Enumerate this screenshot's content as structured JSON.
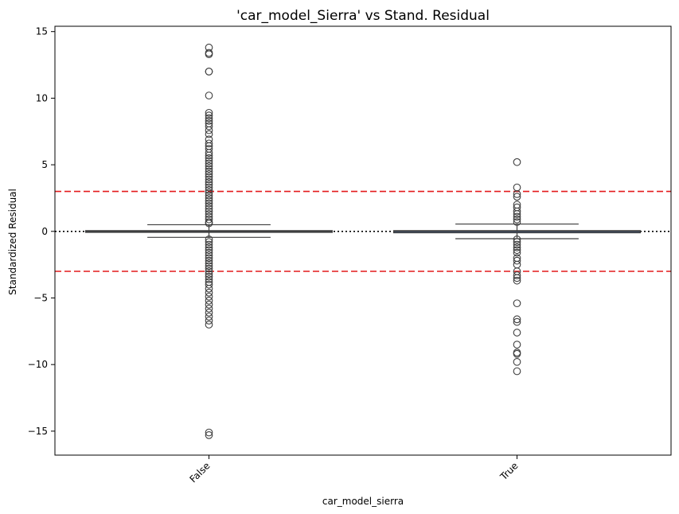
{
  "chart_data": {
    "type": "box",
    "title": "'car_model_Sierra' vs Stand. Residual",
    "xlabel": "car_model_sierra",
    "ylabel": "Standardized Residual",
    "ylim": [
      -16.8,
      15.4
    ],
    "yticks": [
      15,
      10,
      5,
      0,
      -5,
      -10,
      -15
    ],
    "ytick_labels": [
      "15",
      "10",
      "5",
      "0",
      "−5",
      "−10",
      "−15"
    ],
    "categories": [
      "False",
      "True"
    ],
    "boxes": [
      {
        "category": "False",
        "q1": -0.05,
        "median": 0.0,
        "q3": 0.05,
        "whisker_low": -0.45,
        "whisker_high": 0.5,
        "outliers": [
          13.8,
          13.4,
          13.3,
          12.0,
          12.0,
          10.2,
          8.9,
          8.7,
          8.5,
          8.3,
          8.1,
          7.9,
          7.6,
          7.3,
          6.9,
          6.6,
          6.4,
          6.2,
          5.9,
          5.7,
          5.5,
          5.3,
          5.1,
          4.9,
          4.7,
          4.5,
          4.3,
          4.1,
          3.9,
          3.7,
          3.5,
          3.3,
          3.1,
          2.9,
          2.7,
          2.5,
          2.3,
          2.1,
          1.9,
          1.7,
          1.5,
          1.3,
          1.1,
          0.9,
          0.7,
          0.6,
          -0.6,
          -0.8,
          -1.0,
          -1.2,
          -1.4,
          -1.6,
          -1.8,
          -2.0,
          -2.2,
          -2.4,
          -2.6,
          -2.8,
          -3.0,
          -3.2,
          -3.4,
          -3.6,
          -3.8,
          -4.0,
          -4.3,
          -4.6,
          -4.9,
          -5.2,
          -5.5,
          -5.8,
          -6.1,
          -6.4,
          -6.7,
          -7.0,
          -15.1,
          -15.3
        ]
      },
      {
        "category": "True",
        "q1": -0.1,
        "median": 0.0,
        "q3": 0.05,
        "whisker_low": -0.55,
        "whisker_high": 0.55,
        "outliers": [
          5.2,
          3.3,
          2.8,
          2.6,
          2.0,
          1.8,
          1.5,
          1.3,
          1.1,
          0.9,
          0.7,
          -0.6,
          -0.8,
          -1.0,
          -1.2,
          -1.4,
          -1.6,
          -2.0,
          -2.2,
          -2.5,
          -3.0,
          -3.3,
          -3.5,
          -3.7,
          -5.4,
          -6.6,
          -6.8,
          -7.6,
          -8.5,
          -9.1,
          -9.2,
          -9.8,
          -10.5
        ]
      }
    ],
    "reference_lines": [
      {
        "y": 3,
        "color": "#e41a1c",
        "style": "dashed"
      },
      {
        "y": -3,
        "color": "#e41a1c",
        "style": "dashed"
      },
      {
        "y": 0,
        "color": "#000000",
        "style": "dotted"
      }
    ],
    "box_color": "#4c72b0",
    "grid": false
  }
}
